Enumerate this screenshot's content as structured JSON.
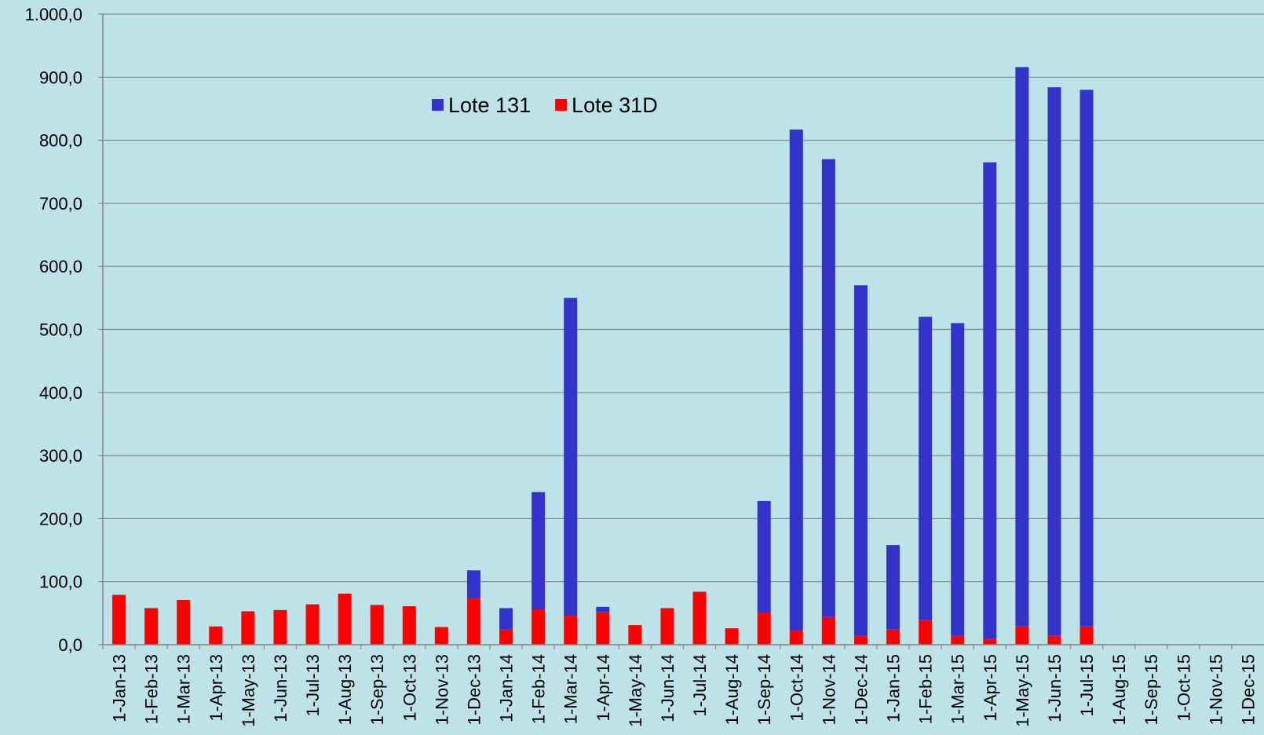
{
  "chart_data": {
    "type": "stacked_bar",
    "categories": [
      "1-Jan-13",
      "1-Feb-13",
      "1-Mar-13",
      "1-Apr-13",
      "1-May-13",
      "1-Jun-13",
      "1-Jul-13",
      "1-Aug-13",
      "1-Sep-13",
      "1-Oct-13",
      "1-Nov-13",
      "1-Dec-13",
      "1-Jan-14",
      "1-Feb-14",
      "1-Mar-14",
      "1-Apr-14",
      "1-May-14",
      "1-Jun-14",
      "1-Jul-14",
      "1-Aug-14",
      "1-Sep-14",
      "1-Oct-14",
      "1-Nov-14",
      "1-Dec-14",
      "1-Jan-15",
      "1-Feb-15",
      "1-Mar-15",
      "1-Apr-15",
      "1-May-15",
      "1-Jun-15",
      "1-Jul-15",
      "1-Aug-15",
      "1-Sep-15",
      "1-Oct-15",
      "1-Nov-15",
      "1-Dec-15"
    ],
    "series": [
      {
        "name": "Lote 31D",
        "color": "#ff0000",
        "values": [
          79,
          58,
          71,
          29,
          53,
          55,
          64,
          81,
          63,
          61,
          28,
          74,
          24,
          56,
          46,
          52,
          31,
          58,
          84,
          26,
          51,
          23,
          44,
          14,
          24,
          39,
          14,
          9,
          29,
          14,
          29,
          null,
          null,
          null,
          null,
          null
        ]
      },
      {
        "name": "Lote 131",
        "color": "#3333cc",
        "values": [
          null,
          null,
          null,
          null,
          null,
          null,
          null,
          null,
          null,
          null,
          null,
          44,
          34,
          186,
          504,
          8,
          null,
          null,
          null,
          null,
          177,
          794,
          726,
          556,
          134,
          481,
          496,
          756,
          887,
          870,
          851,
          null,
          null,
          null,
          null,
          null
        ]
      }
    ],
    "legend_order": [
      1,
      0
    ],
    "ylim": [
      0,
      1000
    ],
    "yticks": [
      {
        "value": 0,
        "label": "0,0"
      },
      {
        "value": 100,
        "label": "100,0"
      },
      {
        "value": 200,
        "label": "200,0"
      },
      {
        "value": 300,
        "label": "300,0"
      },
      {
        "value": 400,
        "label": "400,0"
      },
      {
        "value": 500,
        "label": "500,0"
      },
      {
        "value": 600,
        "label": "600,0"
      },
      {
        "value": 700,
        "label": "700,0"
      },
      {
        "value": 800,
        "label": "800,0"
      },
      {
        "value": 900,
        "label": "900,0"
      },
      {
        "value": 1000,
        "label": "1.000,0"
      }
    ],
    "grid": true
  }
}
